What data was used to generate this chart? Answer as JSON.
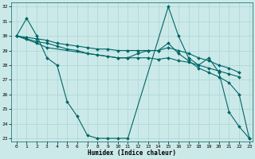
{
  "xlabel": "Humidex (Indice chaleur)",
  "xlim_min": -0.5,
  "xlim_max": 23.3,
  "ylim_min": 22.8,
  "ylim_max": 32.3,
  "yticks": [
    23,
    24,
    25,
    26,
    27,
    28,
    29,
    30,
    31,
    32
  ],
  "xticks": [
    0,
    1,
    2,
    3,
    4,
    5,
    6,
    7,
    8,
    9,
    10,
    11,
    12,
    13,
    14,
    15,
    16,
    17,
    18,
    19,
    20,
    21,
    22,
    23
  ],
  "background_color": "#cce9e9",
  "grid_color": "#aad4d4",
  "line_color": "#006666",
  "lines": [
    {
      "x": [
        0,
        1,
        2,
        3,
        4,
        5,
        6,
        7,
        8,
        9,
        10,
        11,
        15,
        16,
        17,
        18,
        19,
        20,
        21,
        22,
        23
      ],
      "y": [
        30.0,
        31.2,
        30.0,
        28.5,
        28.0,
        25.5,
        24.5,
        23.2,
        23.0,
        23.0,
        23.0,
        23.0,
        32.0,
        30.0,
        28.5,
        28.0,
        28.5,
        27.5,
        24.8,
        23.8,
        23.0
      ]
    },
    {
      "x": [
        0,
        1,
        2,
        3,
        4,
        5,
        6,
        7,
        8,
        9,
        10,
        11,
        12,
        13,
        14,
        15,
        16,
        17,
        18,
        19,
        20,
        21,
        22
      ],
      "y": [
        30.0,
        29.9,
        29.8,
        29.7,
        29.5,
        29.4,
        29.3,
        29.2,
        29.1,
        29.1,
        29.0,
        29.0,
        29.0,
        29.0,
        29.0,
        29.2,
        29.0,
        28.8,
        28.5,
        28.3,
        28.0,
        27.8,
        27.5
      ]
    },
    {
      "x": [
        0,
        1,
        2,
        3,
        4,
        5,
        6,
        7,
        8,
        9,
        10,
        11,
        12,
        13,
        14,
        15,
        16,
        17,
        18,
        19,
        20,
        21,
        22
      ],
      "y": [
        30.0,
        29.8,
        29.6,
        29.5,
        29.3,
        29.1,
        29.0,
        28.8,
        28.7,
        28.6,
        28.5,
        28.5,
        28.5,
        28.5,
        28.4,
        28.5,
        28.3,
        28.2,
        28.0,
        27.8,
        27.6,
        27.4,
        27.2
      ]
    },
    {
      "x": [
        0,
        2,
        3,
        10,
        11,
        12,
        13,
        14,
        15,
        16,
        17,
        18,
        19,
        20,
        21,
        22,
        23
      ],
      "y": [
        30.0,
        29.5,
        29.2,
        28.5,
        28.5,
        28.8,
        29.0,
        29.0,
        29.5,
        28.8,
        28.3,
        27.8,
        27.5,
        27.2,
        26.8,
        26.0,
        23.0
      ]
    }
  ],
  "figsize": [
    3.2,
    2.0
  ],
  "dpi": 100
}
